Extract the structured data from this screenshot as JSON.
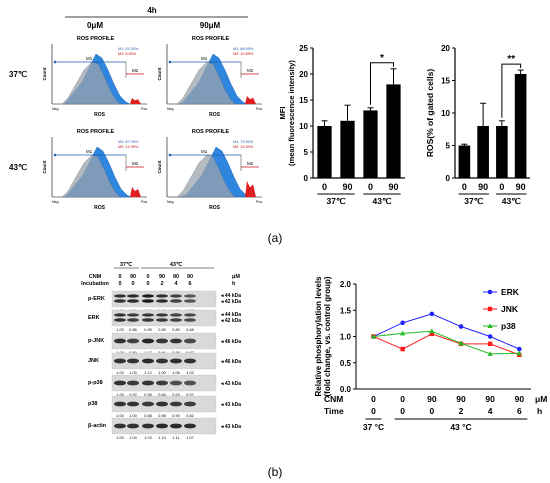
{
  "panel_a": {
    "label": "(a)",
    "flow": {
      "time": "4h",
      "cols": [
        "0μM",
        "90μM"
      ],
      "rows": [
        "37℃",
        "43℃"
      ],
      "plot_title": "ROS PROFILE",
      "ylabel": "Count",
      "xlabel": "ROS",
      "tick_neg": "Neg.",
      "tick_pos": "Pos.",
      "gates": [
        "M1",
        "M2"
      ],
      "stats": [
        {
          "m1": "M1: 91.05%",
          "m2": "M2: 8.90%"
        },
        {
          "m1": "M1: 88.95%",
          "m2": "M2: 10.85%"
        },
        {
          "m1": "M1: 87.05%",
          "m2": "M2: 12.95%"
        },
        {
          "m1": "M1: 75.50%",
          "m2": "M2: 24.50%"
        }
      ]
    }
  },
  "panel_b": {
    "label": "(b)",
    "blot": {
      "header_cnm": "CNM",
      "header_inc": "Incubation",
      "temp_37": "37℃",
      "temp_43": "43℃",
      "unit_um": "μM",
      "unit_h": "h",
      "cnm_values": [
        "0",
        "90",
        "0",
        "90",
        "90",
        "90"
      ],
      "inc_values": [
        "0",
        "0",
        "0",
        "2",
        "4",
        "6"
      ],
      "bands": [
        {
          "name": "p-ERK",
          "kda": [
            "44 kDa",
            "42 kDa"
          ],
          "quant": [
            "1.00",
            "1.11",
            "1.36",
            "1.06",
            "0.80",
            "0.52"
          ]
        },
        {
          "name": "ERK",
          "kda": [
            "44 kDa",
            "42 kDa"
          ],
          "quant": [
            "1.00",
            "0.86",
            "0.95",
            "0.89",
            "0.80",
            "0.68"
          ]
        },
        {
          "name": "p-JNK",
          "kda": [
            "46 kDa"
          ],
          "quant": [
            "1.00",
            "0.80",
            "1.17",
            "0.91",
            "0.95",
            "0.67"
          ]
        },
        {
          "name": "JNK",
          "kda": [
            "46 kDa"
          ],
          "quant": [
            "1.00",
            "1.00",
            "1.12",
            "1.00",
            "1.06",
            "1.02"
          ]
        },
        {
          "name": "p-p38",
          "kda": [
            "43 kDa"
          ],
          "quant": [
            "1.00",
            "0.92",
            "0.96",
            "0.84",
            "0.63",
            "0.57"
          ]
        },
        {
          "name": "p38",
          "kda": [
            "43 kDa"
          ],
          "quant": [
            "1.00",
            "1.00",
            "0.88",
            "0.98",
            "0.90",
            "0.82"
          ]
        },
        {
          "name": "β-actin",
          "kda": [
            "43 kDa"
          ],
          "quant": [
            "1.00",
            "1.04",
            "1.03",
            "1.14",
            "1.11",
            "1.07"
          ]
        }
      ]
    }
  },
  "chart_data": [
    {
      "type": "bar",
      "ylabel": "MFI (mean fluorescence intensity)",
      "categories": [
        "0",
        "90",
        "0",
        "90"
      ],
      "groups": [
        "37℃",
        "43℃"
      ],
      "values": [
        10,
        11,
        13,
        18
      ],
      "errors": [
        1,
        3,
        0.5,
        3
      ],
      "ylim": [
        0,
        25
      ],
      "yticks": [
        "0",
        "5",
        "10",
        "15",
        "20",
        "25"
      ],
      "significance": "*",
      "bar_color": "#000000"
    },
    {
      "type": "bar",
      "ylabel": "ROS(% of gated cells)",
      "categories": [
        "0",
        "90",
        "0",
        "90"
      ],
      "groups": [
        "37℃",
        "43℃"
      ],
      "values": [
        5,
        8,
        8,
        16
      ],
      "errors": [
        0.2,
        3.5,
        0.8,
        0.6
      ],
      "ylim": [
        0,
        20
      ],
      "yticks": [
        "0",
        "5",
        "10",
        "15",
        "20"
      ],
      "significance": "**",
      "bar_color": "#000000"
    },
    {
      "type": "line",
      "ylabel": "Relative phosphorylation levels (fold change, vs. control group)",
      "ylim": [
        0,
        2.0
      ],
      "yticks": [
        "0.0",
        "0.5",
        "1.0",
        "1.5",
        "2.0"
      ],
      "x_rows": {
        "cnm_label": "CNM",
        "time_label": "Time",
        "cnm_unit": "μM",
        "time_unit": "h",
        "cnm": [
          "0",
          "0",
          "90",
          "90",
          "90",
          "90"
        ],
        "time": [
          "0",
          "0",
          "0",
          "2",
          "4",
          "6"
        ]
      },
      "groups": [
        "37 °C",
        "43 °C"
      ],
      "series": [
        {
          "name": "ERK",
          "color": "#2222ff",
          "marker": "circle",
          "values": [
            1.0,
            1.26,
            1.43,
            1.19,
            1.0,
            0.76
          ]
        },
        {
          "name": "JNK",
          "color": "#ff1a1a",
          "marker": "square",
          "values": [
            1.0,
            0.76,
            1.05,
            0.86,
            0.86,
            0.65
          ]
        },
        {
          "name": "p38",
          "color": "#22bb22",
          "marker": "triangle",
          "values": [
            1.0,
            1.06,
            1.1,
            0.87,
            0.67,
            0.68
          ]
        }
      ]
    }
  ]
}
